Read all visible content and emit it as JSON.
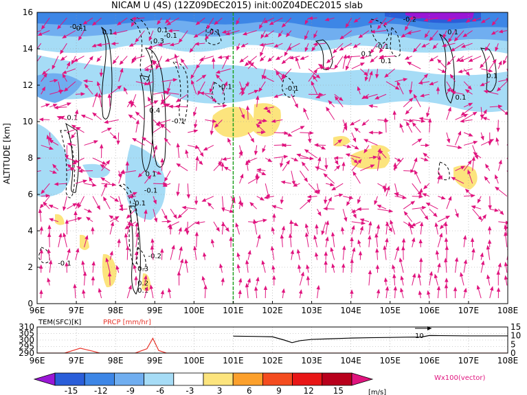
{
  "title": "NICAM U (4S) (12Z09DEC2015) init:00Z04DEC2015 slab",
  "colors": {
    "vector": "#e0147e",
    "contour": "#000000",
    "marker_line": "#20a020",
    "temp_line": "#000000",
    "prcp_line": "#e8342a",
    "grid": "#999999"
  },
  "chart_data": [
    {
      "type": "heatmap",
      "title": "NICAM U (4S) (12Z09DEC2015) init:00Z04DEC2015 slab",
      "ylabel": "ALTITUDE [km]",
      "xlim": [
        96,
        108
      ],
      "ylim": [
        0,
        16
      ],
      "x_ticks": [
        "96E",
        "97E",
        "98E",
        "99E",
        "100E",
        "101E",
        "102E",
        "103E",
        "104E",
        "105E",
        "106E",
        "107E",
        "108E"
      ],
      "y_ticks": [
        "0",
        "2",
        "4",
        "6",
        "8",
        "10",
        "12",
        "14",
        "16"
      ],
      "grid": true,
      "marker_longitude": 101,
      "contour_labels": [
        {
          "text": "-0.1",
          "x": 97.0,
          "y": 15.1
        },
        {
          "text": "0.1",
          "x": 97.8,
          "y": 14.8
        },
        {
          "text": "-0.1",
          "x": 99.4,
          "y": 14.6
        },
        {
          "text": "-0.1",
          "x": 97.1,
          "y": 15.0
        },
        {
          "text": "0.1",
          "x": 99.2,
          "y": 14.9
        },
        {
          "text": "0.3",
          "x": 99.1,
          "y": 14.3
        },
        {
          "text": "-0.1",
          "x": 100.5,
          "y": 14.8
        },
        {
          "text": "-0.2",
          "x": 105.5,
          "y": 15.5
        },
        {
          "text": "0.1",
          "x": 106.6,
          "y": 14.8
        },
        {
          "text": "0.1",
          "x": 104.4,
          "y": 13.6
        },
        {
          "text": "0.1",
          "x": 104.9,
          "y": 13.2
        },
        {
          "text": "-0.1",
          "x": 104.8,
          "y": 14.0
        },
        {
          "text": "0.1",
          "x": 107.6,
          "y": 12.4
        },
        {
          "text": "-0.1",
          "x": 102.5,
          "y": 11.7
        },
        {
          "text": "-0.1",
          "x": 100.8,
          "y": 11.8
        },
        {
          "text": "0.1",
          "x": 106.8,
          "y": 11.2
        },
        {
          "text": "0.4",
          "x": 99.0,
          "y": 10.5
        },
        {
          "text": "0.1",
          "x": 96.9,
          "y": 10.1
        },
        {
          "text": "-0.1",
          "x": 99.6,
          "y": 9.9
        },
        {
          "text": "0.1",
          "x": 98.9,
          "y": 7.0
        },
        {
          "text": "-0.1",
          "x": 98.9,
          "y": 6.1
        },
        {
          "text": "-0.1",
          "x": 98.6,
          "y": 5.4
        },
        {
          "text": "-0.2",
          "x": 99.0,
          "y": 2.5
        },
        {
          "text": "-0.1",
          "x": 96.7,
          "y": 2.1
        },
        {
          "text": "0.3",
          "x": 98.7,
          "y": 1.8
        },
        {
          "text": "0.2",
          "x": 98.7,
          "y": 1.0
        },
        {
          "text": "0.1",
          "x": 98.7,
          "y": 0.6
        }
      ]
    },
    {
      "type": "line",
      "xlim": [
        96,
        108
      ],
      "x_ticks": [
        "96E",
        "97E",
        "98E",
        "99E",
        "100E",
        "101E",
        "102E",
        "103E",
        "104E",
        "105E",
        "106E",
        "107E",
        "108E"
      ],
      "left_axis_label": "TEM(SFC)[K]",
      "right_axis_label": "PRCP [mm/hr]",
      "left_ticks": [
        "290",
        "295",
        "300",
        "305",
        "310"
      ],
      "right_ticks": [
        "0",
        "5",
        "10",
        "15"
      ],
      "left_ylim": [
        290,
        310
      ],
      "right_ylim": [
        0,
        15
      ],
      "annotation": "10",
      "series": [
        {
          "name": "TEM(SFC)[K]",
          "axis": "left",
          "x": [
            101,
            101.5,
            102,
            102.3,
            102.5,
            102.7,
            103,
            103.5,
            104,
            104.5,
            105,
            105.4,
            105.8,
            106,
            106.3,
            107,
            108
          ],
          "values": [
            303,
            302.8,
            302.5,
            300,
            298,
            299.5,
            300.5,
            301,
            301.5,
            301.8,
            302,
            302.2,
            302.3,
            303.5,
            303.4,
            303.2,
            303.2
          ]
        },
        {
          "name": "PRCP [mm/hr]",
          "axis": "right",
          "x": [
            96,
            96.7,
            97.1,
            97.4,
            97.6,
            98,
            98.5,
            98.8,
            98.95,
            99.1,
            99.3,
            100,
            108
          ],
          "values": [
            0,
            0,
            2.8,
            1.2,
            0,
            0,
            0,
            2.5,
            8.5,
            1.5,
            0,
            0,
            0
          ]
        }
      ]
    }
  ],
  "colorbar": {
    "ticks": [
      "-15",
      "-12",
      "-9",
      "-6",
      "-3",
      "3",
      "6",
      "9",
      "12",
      "15"
    ],
    "unit": "[m/s]",
    "vector_label": "Wx100(vector)",
    "colors": [
      "#9a17d6",
      "#2a5ed9",
      "#3d86e6",
      "#70aef0",
      "#a6dcf6",
      "#ffffff",
      "#fce47d",
      "#fca02c",
      "#f44c1f",
      "#e81616",
      "#b8001c",
      "#e0147e"
    ]
  }
}
